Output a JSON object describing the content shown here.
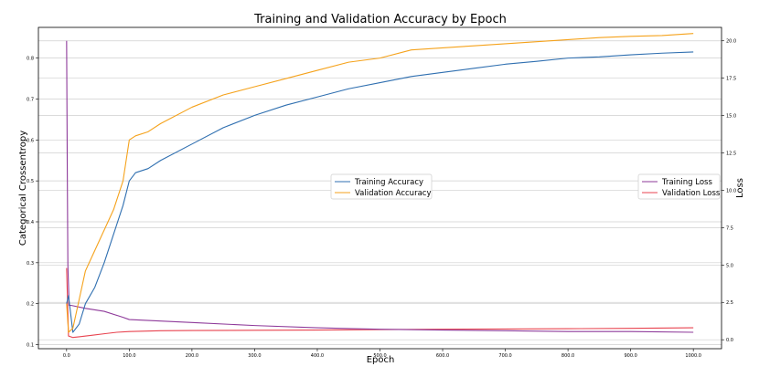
{
  "chart_data": {
    "type": "line",
    "title": "Training and Validation Accuracy by Epoch",
    "xlabel": "Epoch",
    "ylabel_left": "Categorical Crossentropy",
    "ylabel_right": "Loss",
    "xlim": [
      -45,
      1045
    ],
    "ylim_left": [
      0.09,
      0.875
    ],
    "ylim_right": [
      -0.6,
      20.9
    ],
    "x_ticks": [
      0,
      100,
      200,
      300,
      400,
      500,
      600,
      700,
      800,
      900,
      1000
    ],
    "x_tick_labels": [
      "0.0",
      "100.0",
      "200.0",
      "300.0",
      "400.0",
      "500.0",
      "600.0",
      "700.0",
      "800.0",
      "900.0",
      "1000.0"
    ],
    "y_left_ticks": [
      0.1,
      0.2,
      0.3,
      0.4,
      0.5,
      0.6,
      0.7,
      0.8
    ],
    "y_left_tick_labels": [
      "0.1",
      "0.2",
      "0.3",
      "0.4",
      "0.5",
      "0.6",
      "0.7",
      "0.8"
    ],
    "y_right_ticks": [
      0,
      2.5,
      5,
      7.5,
      10,
      12.5,
      15,
      17.5,
      20
    ],
    "y_right_tick_labels": [
      "0.0",
      "2.5",
      "5.0",
      "7.5",
      "10.0",
      "12.5",
      "15.0",
      "17.5",
      "20.0"
    ],
    "grid": true,
    "series": [
      {
        "name": "Training Accuracy",
        "axis": "left",
        "color": "#2f6fb0",
        "x": [
          0,
          3,
          10,
          20,
          30,
          45,
          60,
          75,
          90,
          100,
          110,
          130,
          150,
          200,
          250,
          300,
          350,
          400,
          450,
          500,
          550,
          600,
          650,
          700,
          750,
          800,
          850,
          900,
          950,
          1000
        ],
        "y": [
          0.2,
          0.22,
          0.13,
          0.15,
          0.2,
          0.24,
          0.3,
          0.37,
          0.44,
          0.5,
          0.52,
          0.53,
          0.55,
          0.59,
          0.63,
          0.66,
          0.685,
          0.705,
          0.725,
          0.74,
          0.755,
          0.765,
          0.775,
          0.785,
          0.792,
          0.8,
          0.803,
          0.808,
          0.812,
          0.815
        ]
      },
      {
        "name": "Validation Accuracy",
        "axis": "left",
        "color": "#f5a21b",
        "x": [
          0,
          3,
          10,
          20,
          30,
          45,
          60,
          75,
          90,
          100,
          110,
          130,
          150,
          200,
          250,
          300,
          350,
          400,
          450,
          500,
          550,
          600,
          650,
          700,
          750,
          800,
          850,
          900,
          950,
          1000
        ],
        "y": [
          0.2,
          0.13,
          0.14,
          0.21,
          0.28,
          0.33,
          0.38,
          0.43,
          0.5,
          0.6,
          0.61,
          0.62,
          0.64,
          0.68,
          0.71,
          0.73,
          0.75,
          0.77,
          0.79,
          0.8,
          0.82,
          0.825,
          0.83,
          0.835,
          0.84,
          0.845,
          0.85,
          0.853,
          0.855,
          0.86
        ]
      },
      {
        "name": "Training Loss",
        "axis": "right",
        "color": "#8e3a9a",
        "x": [
          0,
          1,
          2,
          4,
          7,
          30,
          60,
          90,
          100,
          200,
          300,
          400,
          500,
          600,
          700,
          800,
          900,
          1000
        ],
        "y": [
          20.0,
          12.0,
          5.0,
          2.3,
          2.3,
          2.1,
          1.9,
          1.5,
          1.35,
          1.15,
          0.95,
          0.8,
          0.7,
          0.65,
          0.6,
          0.55,
          0.55,
          0.5
        ]
      },
      {
        "name": "Validation Loss",
        "axis": "right",
        "color": "#e8434f",
        "x": [
          0,
          3,
          10,
          20,
          40,
          60,
          80,
          100,
          150,
          200,
          300,
          400,
          500,
          600,
          700,
          800,
          900,
          1000
        ],
        "y": [
          4.8,
          0.25,
          0.15,
          0.2,
          0.3,
          0.4,
          0.5,
          0.55,
          0.6,
          0.62,
          0.63,
          0.65,
          0.68,
          0.7,
          0.72,
          0.74,
          0.76,
          0.8
        ]
      }
    ],
    "legends": [
      {
        "location": "center",
        "entries": [
          "Training Accuracy",
          "Validation Accuracy"
        ]
      },
      {
        "location": "center-right",
        "entries": [
          "Training Loss",
          "Validation Loss"
        ]
      }
    ]
  }
}
